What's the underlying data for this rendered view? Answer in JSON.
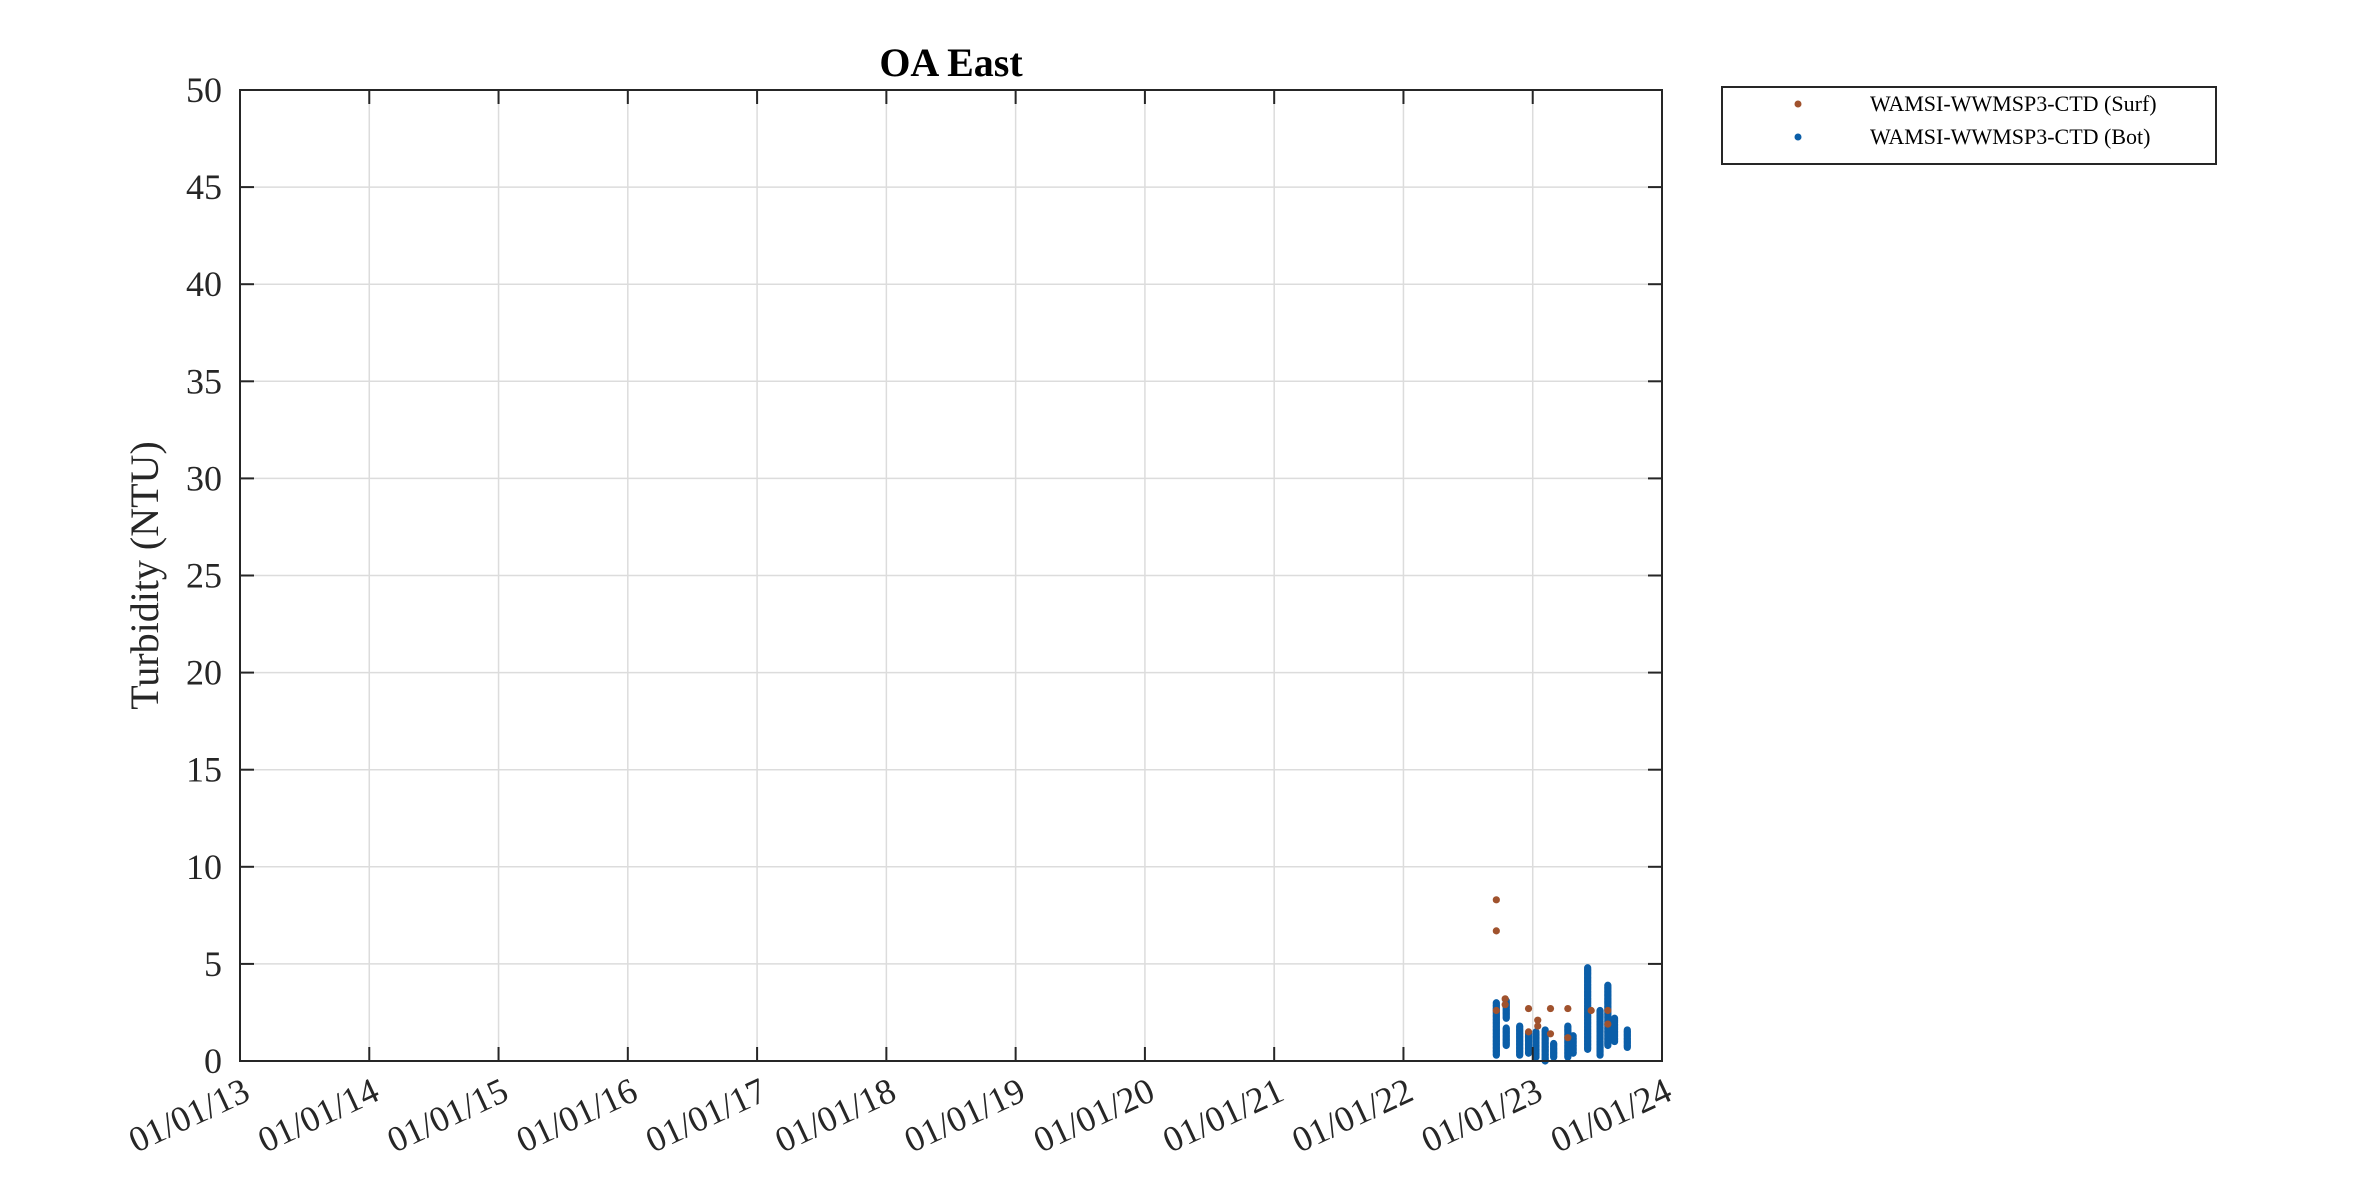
{
  "chart_data": {
    "type": "scatter",
    "title": "OA East",
    "xlabel": "",
    "ylabel": "Turbidity (NTU)",
    "x_ticks": [
      "01/01/13",
      "01/01/14",
      "01/01/15",
      "01/01/16",
      "01/01/17",
      "01/01/18",
      "01/01/19",
      "01/01/20",
      "01/01/21",
      "01/01/22",
      "01/01/23",
      "01/01/24"
    ],
    "xlim": [
      "2013-01-01",
      "2024-01-01"
    ],
    "ylim": [
      0,
      50
    ],
    "y_ticks": [
      0,
      5,
      10,
      15,
      20,
      25,
      30,
      35,
      40,
      45,
      50
    ],
    "grid": true,
    "legend_position": "outside-top-right",
    "series": [
      {
        "name": "WAMSI-WWMSP3-CTD (Surf)",
        "color": "#a0522d",
        "points": [
          {
            "x": "2022-09-20",
            "y": 8.3
          },
          {
            "x": "2022-09-20",
            "y": 6.7
          },
          {
            "x": "2022-09-20",
            "y": 2.6
          },
          {
            "x": "2022-10-15",
            "y": 3.2
          },
          {
            "x": "2022-10-15",
            "y": 2.9
          },
          {
            "x": "2022-12-20",
            "y": 2.7
          },
          {
            "x": "2022-12-20",
            "y": 1.5
          },
          {
            "x": "2023-01-15",
            "y": 2.1
          },
          {
            "x": "2023-01-15",
            "y": 1.8
          },
          {
            "x": "2023-02-20",
            "y": 2.7
          },
          {
            "x": "2023-02-20",
            "y": 1.4
          },
          {
            "x": "2023-04-10",
            "y": 2.7
          },
          {
            "x": "2023-04-10",
            "y": 1.2
          },
          {
            "x": "2023-06-15",
            "y": 2.6
          },
          {
            "x": "2023-08-01",
            "y": 2.6
          },
          {
            "x": "2023-08-01",
            "y": 1.9
          }
        ]
      },
      {
        "name": "WAMSI-WWMSP3-CTD (Bot)",
        "color": "#0b5ea8",
        "clusters": [
          {
            "x": "2022-09-20",
            "y_min": 0.3,
            "y_max": 3.0
          },
          {
            "x": "2022-10-18",
            "y_min": 2.2,
            "y_max": 3.1
          },
          {
            "x": "2022-10-18",
            "y_min": 0.8,
            "y_max": 1.7
          },
          {
            "x": "2022-11-25",
            "y_min": 0.3,
            "y_max": 1.8
          },
          {
            "x": "2022-12-20",
            "y_min": 0.4,
            "y_max": 1.4
          },
          {
            "x": "2023-01-10",
            "y_min": 0.2,
            "y_max": 1.5
          },
          {
            "x": "2023-02-05",
            "y_min": 0.0,
            "y_max": 1.6
          },
          {
            "x": "2023-03-01",
            "y_min": 0.2,
            "y_max": 0.9
          },
          {
            "x": "2023-04-10",
            "y_min": 0.2,
            "y_max": 1.8
          },
          {
            "x": "2023-04-25",
            "y_min": 0.4,
            "y_max": 1.3
          },
          {
            "x": "2023-06-05",
            "y_min": 0.6,
            "y_max": 4.8
          },
          {
            "x": "2023-07-10",
            "y_min": 0.3,
            "y_max": 2.6
          },
          {
            "x": "2023-08-01",
            "y_min": 0.8,
            "y_max": 3.9
          },
          {
            "x": "2023-08-20",
            "y_min": 1.0,
            "y_max": 2.2
          },
          {
            "x": "2023-09-25",
            "y_min": 0.7,
            "y_max": 1.6
          }
        ]
      }
    ]
  }
}
